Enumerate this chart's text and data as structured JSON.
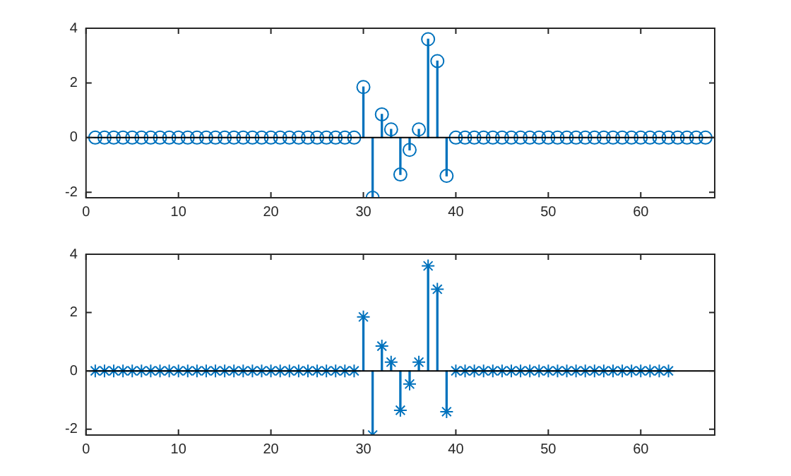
{
  "chart_data": [
    {
      "type": "lollipop",
      "marker": "circle",
      "grid": false,
      "legend": false,
      "x": [
        1,
        2,
        3,
        4,
        5,
        6,
        7,
        8,
        9,
        10,
        11,
        12,
        13,
        14,
        15,
        16,
        17,
        18,
        19,
        20,
        21,
        22,
        23,
        24,
        25,
        26,
        27,
        28,
        29,
        30,
        31,
        32,
        33,
        34,
        35,
        36,
        37,
        38,
        39,
        40,
        41,
        42,
        43,
        44,
        45,
        46,
        47,
        48,
        49,
        50,
        51,
        52,
        53,
        54,
        55,
        56,
        57,
        58,
        59,
        60,
        61,
        62,
        63,
        64,
        65,
        66,
        67
      ],
      "series": [
        {
          "color": "#0072bd",
          "values": [
            0,
            0,
            0,
            0,
            0,
            0,
            0,
            0,
            0,
            0,
            0,
            0,
            0,
            0,
            0,
            0,
            0,
            0,
            0,
            0,
            0,
            0,
            0,
            0,
            0,
            0,
            0,
            0,
            0,
            1.85,
            -2.2,
            0.85,
            0.3,
            -1.35,
            -0.45,
            0.3,
            3.6,
            2.8,
            -1.4,
            0,
            0,
            0,
            0,
            0,
            0,
            0,
            0,
            0,
            0,
            0,
            0,
            0,
            0,
            0,
            0,
            0,
            0,
            0,
            0,
            0,
            0,
            0,
            0,
            0,
            0,
            0,
            0
          ]
        }
      ],
      "xlim": [
        0,
        68
      ],
      "xticks": [
        0,
        10,
        20,
        30,
        40,
        50,
        60
      ],
      "ylim": [
        -2.2,
        4
      ],
      "yticks": [
        -2,
        0,
        2,
        4
      ],
      "ref_lines": [
        {
          "axis": "y",
          "value": 0,
          "color": "#000000"
        }
      ]
    },
    {
      "type": "lollipop",
      "marker": "cross",
      "grid": false,
      "legend": false,
      "x": [
        1,
        2,
        3,
        4,
        5,
        6,
        7,
        8,
        9,
        10,
        11,
        12,
        13,
        14,
        15,
        16,
        17,
        18,
        19,
        20,
        21,
        22,
        23,
        24,
        25,
        26,
        27,
        28,
        29,
        30,
        31,
        32,
        33,
        34,
        35,
        36,
        37,
        38,
        39,
        40,
        41,
        42,
        43,
        44,
        45,
        46,
        47,
        48,
        49,
        50,
        51,
        52,
        53,
        54,
        55,
        56,
        57,
        58,
        59,
        60,
        61,
        62,
        63
      ],
      "series": [
        {
          "color": "#0072bd",
          "values": [
            0,
            0,
            0,
            0,
            0,
            0,
            0,
            0,
            0,
            0,
            0,
            0,
            0,
            0,
            0,
            0,
            0,
            0,
            0,
            0,
            0,
            0,
            0,
            0,
            0,
            0,
            0,
            0,
            0,
            1.85,
            -2.2,
            0.85,
            0.3,
            -1.35,
            -0.45,
            0.3,
            3.6,
            2.8,
            -1.4,
            0,
            0,
            0,
            0,
            0,
            0,
            0,
            0,
            0,
            0,
            0,
            0,
            0,
            0,
            0,
            0,
            0,
            0,
            0,
            0,
            0,
            0,
            0,
            0
          ]
        }
      ],
      "xlim": [
        0,
        68
      ],
      "xticks": [
        0,
        10,
        20,
        30,
        40,
        50,
        60
      ],
      "ylim": [
        -2.2,
        4
      ],
      "yticks": [
        -2,
        0,
        2,
        4
      ],
      "ref_lines": [
        {
          "axis": "y",
          "value": 0,
          "color": "#000000"
        }
      ]
    }
  ]
}
